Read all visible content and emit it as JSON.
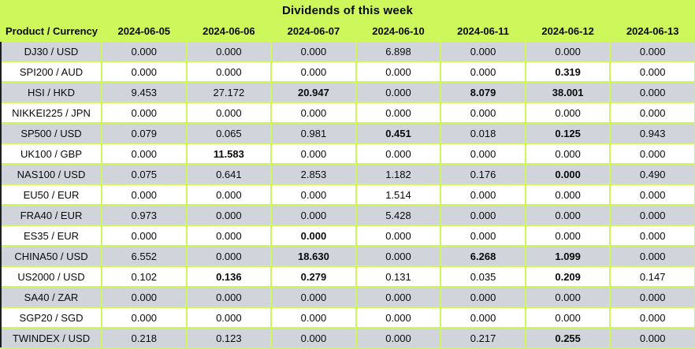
{
  "title": "Dividends of this week",
  "columns": {
    "product": "Product / Currency",
    "dates": [
      "2024-06-05",
      "2024-06-06",
      "2024-06-07",
      "2024-06-10",
      "2024-06-11",
      "2024-06-12",
      "2024-06-13"
    ]
  },
  "rows": [
    {
      "product": "DJ30 / USD",
      "values": [
        "0.000",
        "0.000",
        "0.000",
        "6.898",
        "0.000",
        "0.000",
        "0.000"
      ],
      "bold_indices": []
    },
    {
      "product": "SPI200 / AUD",
      "values": [
        "0.000",
        "0.000",
        "0.000",
        "0.000",
        "0.000",
        "0.319",
        "0.000"
      ],
      "bold_indices": [
        5
      ]
    },
    {
      "product": "HSI / HKD",
      "values": [
        "9.453",
        "27.172",
        "20.947",
        "0.000",
        "8.079",
        "38.001",
        "0.000"
      ],
      "bold_indices": [
        2,
        4,
        5
      ]
    },
    {
      "product": "NIKKEI225 / JPN",
      "values": [
        "0.000",
        "0.000",
        "0.000",
        "0.000",
        "0.000",
        "0.000",
        "0.000"
      ],
      "bold_indices": []
    },
    {
      "product": "SP500 / USD",
      "values": [
        "0.079",
        "0.065",
        "0.981",
        "0.451",
        "0.018",
        "0.125",
        "0.943"
      ],
      "bold_indices": [
        3,
        5
      ]
    },
    {
      "product": "UK100 / GBP",
      "values": [
        "0.000",
        "11.583",
        "0.000",
        "0.000",
        "0.000",
        "0.000",
        "0.000"
      ],
      "bold_indices": [
        1
      ]
    },
    {
      "product": "NAS100 / USD",
      "values": [
        "0.075",
        "0.641",
        "2.853",
        "1.182",
        "0.176",
        "0.000",
        "0.490"
      ],
      "bold_indices": [
        5
      ]
    },
    {
      "product": "EU50 / EUR",
      "values": [
        "0.000",
        "0.000",
        "0.000",
        "1.514",
        "0.000",
        "0.000",
        "0.000"
      ],
      "bold_indices": []
    },
    {
      "product": "FRA40 / EUR",
      "values": [
        "0.973",
        "0.000",
        "0.000",
        "5.428",
        "0.000",
        "0.000",
        "0.000"
      ],
      "bold_indices": []
    },
    {
      "product": "ES35 / EUR",
      "values": [
        "0.000",
        "0.000",
        "0.000",
        "0.000",
        "0.000",
        "0.000",
        "0.000"
      ],
      "bold_indices": [
        2
      ]
    },
    {
      "product": "CHINA50 / USD",
      "values": [
        "6.552",
        "0.000",
        "18.630",
        "0.000",
        "6.268",
        "1.099",
        "0.000"
      ],
      "bold_indices": [
        2,
        4,
        5
      ]
    },
    {
      "product": "US2000 / USD",
      "values": [
        "0.102",
        "0.136",
        "0.279",
        "0.131",
        "0.035",
        "0.209",
        "0.147"
      ],
      "bold_indices": [
        1,
        2,
        5
      ]
    },
    {
      "product": "SA40 / ZAR",
      "values": [
        "0.000",
        "0.000",
        "0.000",
        "0.000",
        "0.000",
        "0.000",
        "0.000"
      ],
      "bold_indices": []
    },
    {
      "product": "SGP20 / SGD",
      "values": [
        "0.000",
        "0.000",
        "0.000",
        "0.000",
        "0.000",
        "0.000",
        "0.000"
      ],
      "bold_indices": []
    },
    {
      "product": "TWINDEX / USD",
      "values": [
        "0.218",
        "0.123",
        "0.000",
        "0.000",
        "0.217",
        "0.255",
        "0.000"
      ],
      "bold_indices": [
        5
      ]
    }
  ],
  "colors": {
    "background": "#CDF75A",
    "row_gray": "#D1D4DB",
    "row_white": "#FFFFFF",
    "text": "#0A0A0A",
    "edge_border": "#1F1F1F"
  }
}
